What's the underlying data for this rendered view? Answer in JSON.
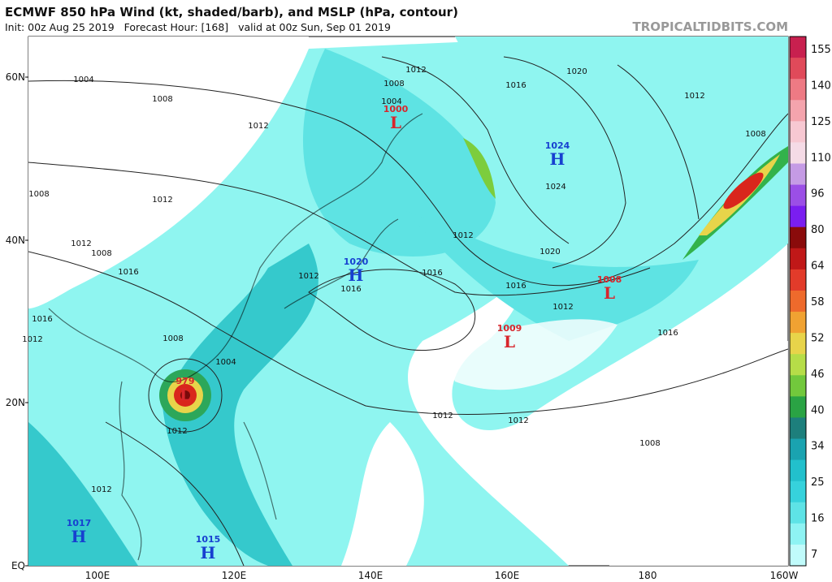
{
  "header": {
    "title": "ECMWF 850 hPa Wind (kt, shaded/barb), and MSLP (hPa, contour)",
    "subtitle": "Init: 00z Aug 25 2019   Forecast Hour: [168]   valid at 00z Sun, Sep 01 2019",
    "brand": "TROPICALTIDBITS.COM"
  },
  "map": {
    "lat_labels": [
      "60N",
      "40N",
      "20N",
      "EQ"
    ],
    "lon_labels": [
      "100E",
      "120E",
      "140E",
      "160E",
      "180",
      "160W"
    ],
    "systems": [
      {
        "type": "L",
        "value": "1000"
      },
      {
        "type": "H",
        "value": "1024"
      },
      {
        "type": "H",
        "value": "1020"
      },
      {
        "type": "L",
        "value": "1008"
      },
      {
        "type": "L",
        "value": "1009"
      },
      {
        "type": "L",
        "value": "979"
      },
      {
        "type": "H",
        "value": "1017"
      },
      {
        "type": "H",
        "value": "1015"
      }
    ],
    "contour_labels": [
      "1004",
      "1008",
      "1012",
      "1016",
      "1020",
      "1012",
      "1008",
      "1004",
      "1008",
      "1012",
      "1008",
      "1012",
      "1024",
      "1012",
      "1020",
      "1012",
      "1008",
      "1016",
      "1012",
      "1016",
      "1016",
      "1016",
      "1012",
      "1016",
      "1016",
      "1012",
      "1008",
      "1004",
      "1012",
      "1012",
      "1012",
      "1008",
      "1012"
    ]
  },
  "colorbar": {
    "labels": [
      "155",
      "140",
      "125",
      "110",
      "96",
      "80",
      "64",
      "58",
      "52",
      "46",
      "40",
      "34",
      "25",
      "16",
      "7"
    ]
  }
}
